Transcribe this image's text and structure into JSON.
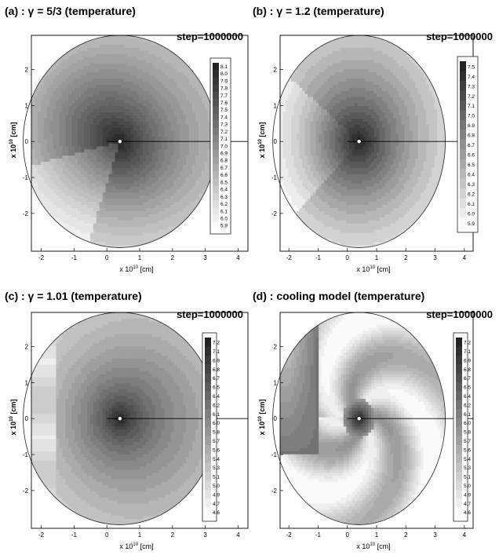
{
  "chart_data": [
    {
      "type": "heatmap",
      "panel_label": "(a)",
      "title": "(a) : γ = 5/3 (temperature)",
      "annotation": "step=1000000",
      "xlabel": {
        "base": "x 10",
        "exp": "10",
        "unit": " [cm]"
      },
      "ylabel": {
        "base": "x 10",
        "exp": "10",
        "unit": " [cm]"
      },
      "xticks": [
        -2,
        -1,
        0,
        1,
        2,
        3,
        4
      ],
      "yticks": [
        2,
        1,
        0,
        -1,
        -2
      ],
      "xlim": [
        -2.3,
        4.3
      ],
      "ylim": [
        -3.05,
        2.95
      ],
      "center": [
        0.4,
        0.0
      ],
      "colorbar": [
        "8.1",
        "8.0",
        "7.9",
        "7.8",
        "7.7",
        "7.6",
        "7.5",
        "7.4",
        "7.3",
        "7.2",
        "7.1",
        "7.0",
        "6.9",
        "6.8",
        "6.7",
        "6.6",
        "6.5",
        "6.4",
        "6.3",
        "6.2",
        "6.1",
        "6.0",
        "5.9"
      ],
      "vmin": 5.9,
      "vmax": 8.1,
      "field": "gamma53"
    },
    {
      "type": "heatmap",
      "panel_label": "(b)",
      "title": "(b) : γ = 1.2 (temperature)",
      "annotation": "step=1000000",
      "xlabel": {
        "base": "x 10",
        "exp": "10",
        "unit": " [cm]"
      },
      "ylabel": {
        "base": "x 10",
        "exp": "10",
        "unit": " [cm]"
      },
      "xticks": [
        -2,
        -1,
        0,
        1,
        2,
        3,
        4
      ],
      "yticks": [
        2,
        1,
        0,
        -1,
        -2
      ],
      "xlim": [
        -2.3,
        4.3
      ],
      "ylim": [
        -3.05,
        2.95
      ],
      "center": [
        0.4,
        0.0
      ],
      "colorbar": [
        "7.5",
        "7.4",
        "7.3",
        "7.2",
        "7.1",
        "7.0",
        "6.9",
        "6.8",
        "6.7",
        "6.6",
        "6.5",
        "6.4",
        "6.3",
        "6.2",
        "6.1",
        "6.0",
        "5.9"
      ],
      "vmin": 5.9,
      "vmax": 7.5,
      "field": "gamma12"
    },
    {
      "type": "heatmap",
      "panel_label": "(c)",
      "title": "(c) : γ = 1.01 (temperature)",
      "annotation": "step=1000000",
      "xlabel": {
        "base": "x 10",
        "exp": "10",
        "unit": " [cm]"
      },
      "ylabel": {
        "base": "x 10",
        "exp": "10",
        "unit": " [cm]"
      },
      "xticks": [
        -2,
        -1,
        0,
        1,
        2,
        3,
        4
      ],
      "yticks": [
        2,
        1,
        0,
        -1,
        -2
      ],
      "xlim": [
        -2.3,
        4.3
      ],
      "ylim": [
        -3.05,
        2.95
      ],
      "center": [
        0.4,
        0.0
      ],
      "colorbar": [
        "7.2",
        "7.1",
        "6.9",
        "6.8",
        "6.7",
        "6.5",
        "6.4",
        "6.2",
        "6.1",
        "6.0",
        "5.8",
        "5.7",
        "5.6",
        "5.4",
        "5.3",
        "5.1",
        "5.0",
        "4.9",
        "4.7",
        "4.6"
      ],
      "vmin": 4.6,
      "vmax": 7.2,
      "field": "gamma101"
    },
    {
      "type": "heatmap",
      "panel_label": "(d)",
      "title": "(d) : cooling model (temperature)",
      "annotation": "step=1000000",
      "xlabel": {
        "base": "x 10",
        "exp": "10",
        "unit": " [cm]"
      },
      "ylabel": {
        "base": "x 10",
        "exp": "10",
        "unit": " [cm]"
      },
      "xticks": [
        -2,
        -1,
        0,
        1,
        2,
        3,
        4
      ],
      "yticks": [
        2,
        1,
        0,
        -1,
        -2
      ],
      "xlim": [
        -2.3,
        4.3
      ],
      "ylim": [
        -3.05,
        2.95
      ],
      "center": [
        0.4,
        0.0
      ],
      "colorbar": [
        "7.2",
        "7.1",
        "6.9",
        "6.8",
        "6.7",
        "6.5",
        "6.4",
        "6.2",
        "6.1",
        "6.0",
        "5.8",
        "5.7",
        "5.6",
        "5.4",
        "5.3",
        "5.1",
        "5.0",
        "4.9",
        "4.7",
        "4.6"
      ],
      "vmin": 4.6,
      "vmax": 7.2,
      "field": "cooling"
    }
  ]
}
